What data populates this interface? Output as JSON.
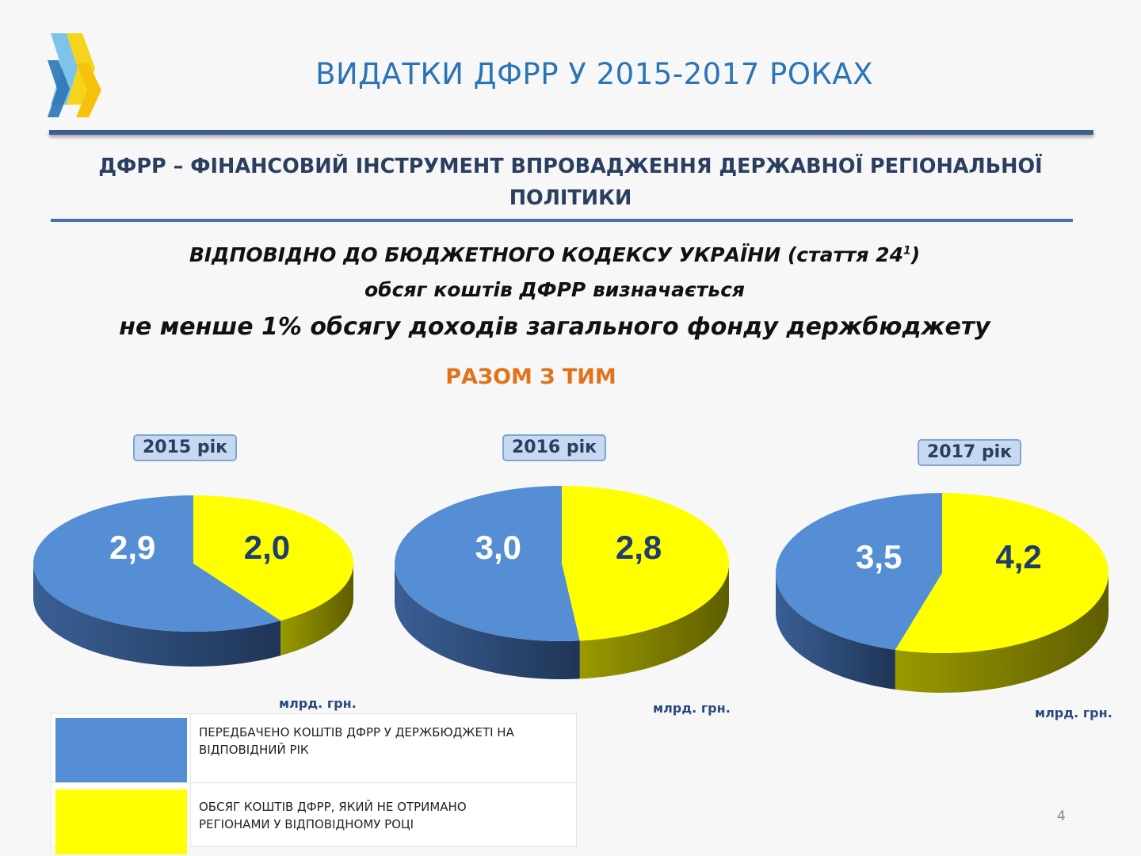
{
  "slide": {
    "title": "ВИДАТКИ ДФРР У 2015-2017 РОКАХ",
    "subtitle_line1": "ДФРР – ФІНАНСОВИЙ ІНСТРУМЕНТ ВПРОВАДЖЕННЯ ДЕРЖАВНОЇ РЕГІОНАЛЬНОЇ",
    "subtitle_line2": "ПОЛІТИКИ",
    "law_line1_main": "ВІДПОВІДНО ДО БЮДЖЕТНОГО КОДЕКСУ УКРАЇНИ (стаття 24",
    "law_line1_sup": "1",
    "law_line1_end": ")",
    "law_line2": "обсяг коштів ДФРР визначається",
    "law_line3": "не менше 1% обсягу доходів загального фонду держбюджету",
    "together": "РАЗОМ З ТИМ",
    "page_number": "4"
  },
  "colors": {
    "title": "#2b74b6",
    "blue_slice": "#558ed5",
    "yellow_slice": "#ffff00",
    "together": "#e0731a",
    "badge_bg": "#c6d9f1"
  },
  "legend": {
    "items": [
      {
        "label_line1": "ПЕРЕДБАЧЕНО  КОШТІВ ДФРР У ДЕРЖБЮДЖЕТІ НА",
        "label_line2": "ВІДПОВІДНИЙ РІК",
        "color": "#558ed5"
      },
      {
        "label_line1": "ОБСЯГ КОШТІВ ДФРР,  ЯКИЙ НЕ ОТРИМАНО",
        "label_line2": "РЕГІОНАМИ У ВІДПОВІДНОМУ РОЦІ",
        "color": "#ffff00"
      }
    ]
  },
  "chart_data": [
    {
      "type": "pie",
      "title": "2015 рік",
      "unit": "млрд. грн.",
      "categories": [
        "blue",
        "yellow"
      ],
      "values": [
        2.9,
        2.0
      ],
      "value_labels": [
        "2,9",
        "2,0"
      ]
    },
    {
      "type": "pie",
      "title": "2016 рік",
      "unit": "млрд. грн.",
      "categories": [
        "blue",
        "yellow"
      ],
      "values": [
        3.0,
        2.8
      ],
      "value_labels": [
        "3,0",
        "2,8"
      ]
    },
    {
      "type": "pie",
      "title": "2017 рік",
      "unit": "млрд. грн.",
      "categories": [
        "blue",
        "yellow"
      ],
      "values": [
        3.5,
        4.2
      ],
      "value_labels": [
        "3,5",
        "4,2"
      ]
    }
  ]
}
